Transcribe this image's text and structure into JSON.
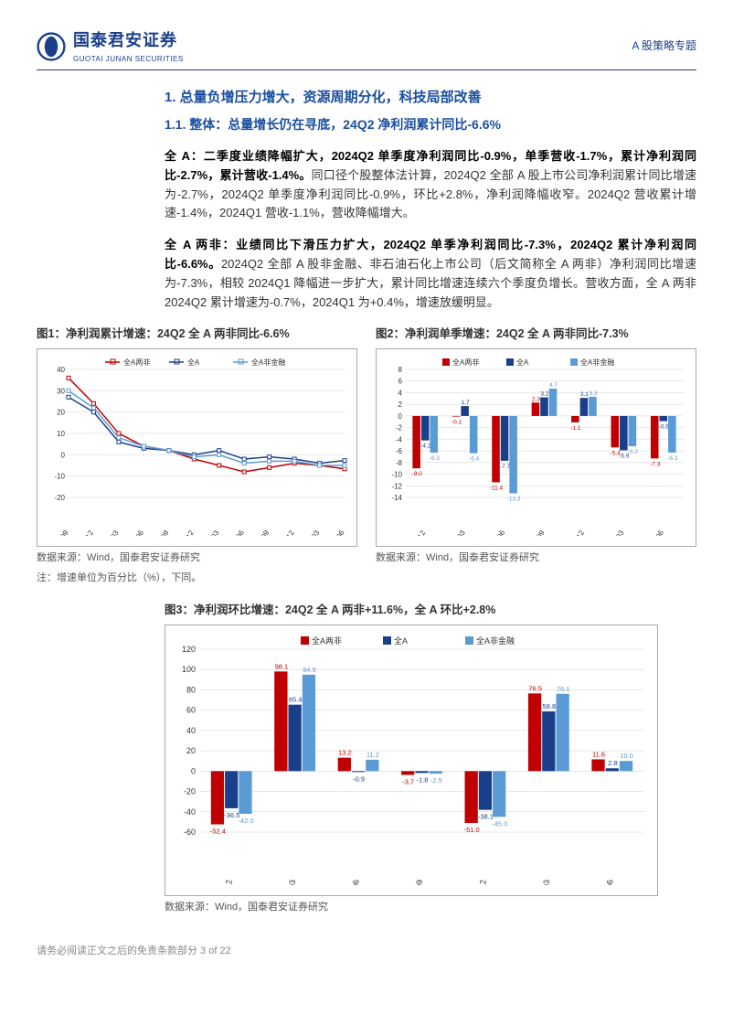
{
  "header": {
    "logo_cn": "国泰君安证券",
    "logo_en": "GUOTAI JUNAN SECURITIES",
    "right": "A 股策略专题"
  },
  "h1": "1. 总量负增压力增大，资源周期分化，科技局部改善",
  "h2": "1.1. 整体：总量增长仍在寻底，24Q2 净利润累计同比-6.6%",
  "para1_bold": "全 A：二季度业绩降幅扩大，2024Q2 单季度净利润同比-0.9%，单季营收-1.7%，累计净利润同比-2.7%，累计营收-1.4%。",
  "para1_rest": "同口径个股整体法计算，2024Q2 全部 A 股上市公司净利润累计同比增速为-2.7%，2024Q2 单季度净利润同比-0.9%，环比+2.8%，净利润降幅收窄。2024Q2 营收累计增速-1.4%，2024Q1 营收-1.1%，营收降幅增大。",
  "para2_bold": "全 A 两非：业绩同比下滑压力扩大，2024Q2 单季净利润同比-7.3%，2024Q2 累计净利润同比-6.6%。",
  "para2_rest": "2024Q2 全部 A 股非金融、非石油石化上市公司（后文简称全 A 两非）净利润同比增速为-7.3%，相较 2024Q1 降幅进一步扩大，累计同比增速连续六个季度负增长。营收方面，全 A 两非 2024Q2 累计增速为-0.7%，2024Q1 为+0.4%，增速放缓明显。",
  "fig1": {
    "title": "图1：净利润累计增速：24Q2 全 A 两非同比-6.6%",
    "legend": [
      "全A两非",
      "全A",
      "全A非金融"
    ],
    "colors": [
      "#c00000",
      "#1a3f8a",
      "#5b9bd5"
    ],
    "categories": [
      "2021-09",
      "2021-12",
      "2022-03",
      "2022-06",
      "2022-09",
      "2022-12",
      "2023-03",
      "2023-06",
      "2023-09",
      "2023-12",
      "2024-03",
      "2024-06"
    ],
    "series": [
      [
        36,
        24,
        10,
        4,
        2,
        -2,
        -5,
        -8,
        -6,
        -4,
        -5,
        -6.6
      ],
      [
        27,
        20,
        6,
        3,
        2,
        0,
        2,
        -2,
        -1,
        -2,
        -4,
        -2.7
      ],
      [
        30,
        22,
        8,
        4,
        2,
        -1,
        0,
        -4,
        -3,
        -3,
        -5,
        -5
      ]
    ],
    "ylim": [
      -20,
      40
    ],
    "ytick": 10,
    "grid_color": "#d0d0d0",
    "bg": "#ffffff",
    "source": "数据来源：Wind，国泰君安证券研究",
    "note": "注：增速单位为百分比（%），下同。"
  },
  "fig2": {
    "title": "图2：净利润单季增速：24Q2 全 A 两非同比-7.3%",
    "legend": [
      "全A两非",
      "全A",
      "全A非金融"
    ],
    "colors": [
      "#c00000",
      "#1a3f8a",
      "#5b9bd5"
    ],
    "categories": [
      "2022-12",
      "2023-03",
      "2023-06",
      "2023-09",
      "2023-12",
      "2024-03",
      "2024-06"
    ],
    "values": [
      [
        -9.0,
        -4.2,
        -6.3
      ],
      [
        -0.1,
        1.7,
        -6.4
      ],
      [
        -11.4,
        -7.7,
        -13.3
      ],
      [
        2.3,
        3.2,
        4.7
      ],
      [
        -1.1,
        3.1,
        3.3
      ],
      [
        -5.4,
        -5.9,
        -5.2
      ],
      [
        -7.3,
        -0.9,
        -6.3
      ]
    ],
    "ylim": [
      -14,
      8
    ],
    "ytick": 2,
    "grid_color": "#d0d0d0",
    "source": "数据来源：Wind，国泰君安证券研究"
  },
  "fig3": {
    "title": "图3：净利润环比增速：24Q2 全 A 两非+11.6%，全 A 环比+2.8%",
    "legend": [
      "全A两非",
      "全A",
      "全A非金融"
    ],
    "colors": [
      "#c00000",
      "#1a3f8a",
      "#5b9bd5"
    ],
    "categories": [
      "2022-12",
      "2023-03",
      "2023-06",
      "2023-09",
      "2023-12",
      "2024-03",
      "2024-06"
    ],
    "values": [
      [
        -52.4,
        -36.5,
        -42
      ],
      [
        98.1,
        65.4,
        94.9
      ],
      [
        13.2,
        -0.9,
        11.2
      ],
      [
        -3.7,
        -1.8,
        -2.5
      ],
      [
        -51,
        -38.1,
        -45
      ],
      [
        76.5,
        58.8,
        76.1
      ],
      [
        11.6,
        2.8,
        10.0
      ]
    ],
    "ylim": [
      -60,
      120
    ],
    "ytick": 20,
    "grid_color": "#d0d0d0",
    "source": "数据来源：Wind，国泰君安证券研究"
  },
  "footer": "请务必阅读正文之后的免责条款部分 3 of 22"
}
